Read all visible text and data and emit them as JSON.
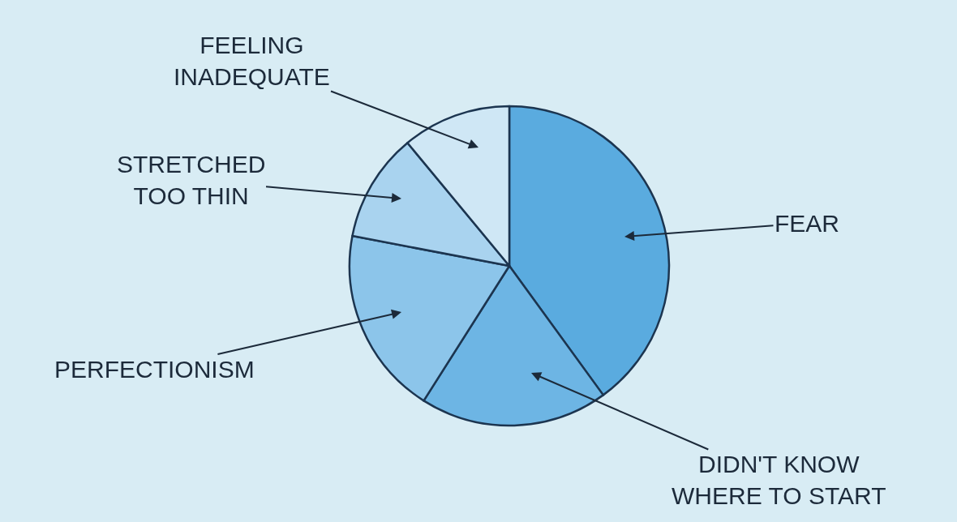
{
  "chart_data": {
    "type": "pie",
    "categories": [
      "FEAR",
      "DIDN'T KNOW\nWHERE TO START",
      "PERFECTIONISM",
      "STRETCHED\nTOO THIN",
      "FEELING\nINADEQUATE"
    ],
    "values": [
      40,
      19,
      19,
      11,
      11
    ],
    "colors": [
      "#5aabdf",
      "#6db5e4",
      "#8cc5ea",
      "#a9d3ef",
      "#cfe7f5"
    ],
    "legend": false
  }
}
